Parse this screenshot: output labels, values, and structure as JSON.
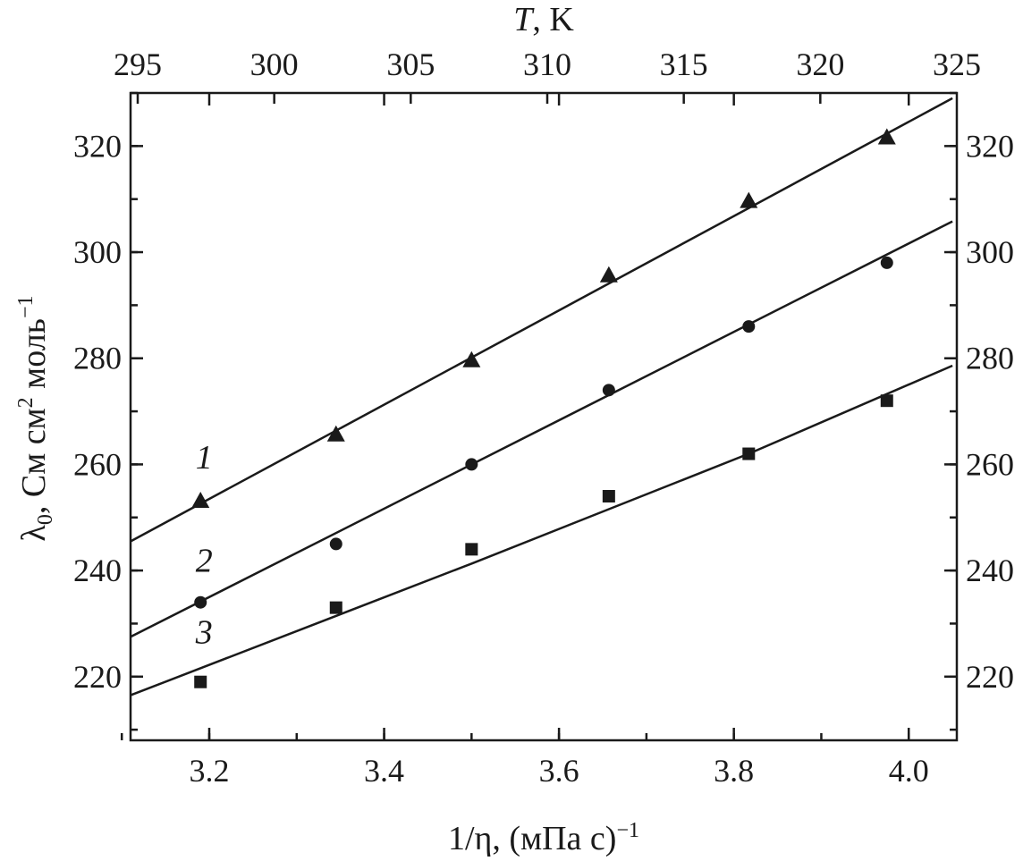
{
  "chart_data": {
    "type": "scatter",
    "bottom_axis": {
      "label": "1/η, (мПа с)",
      "label_sup": "−1",
      "range": [
        3.11,
        4.055
      ],
      "ticks": [
        3.2,
        3.4,
        3.6,
        3.8,
        4.0
      ],
      "tick_labels": [
        "3.2",
        "3.4",
        "3.6",
        "3.8",
        "4.0"
      ]
    },
    "top_axis": {
      "label_var": "T",
      "label_unit": ", K",
      "ticks": [
        295,
        300,
        305,
        310,
        315,
        320,
        325
      ],
      "tick_labels": [
        "295",
        "300",
        "305",
        "310",
        "315",
        "320",
        "325"
      ]
    },
    "left_axis": {
      "label_lambda": "λ",
      "label_sub": "0",
      "label_mid": ", См см",
      "label_sup2": "2",
      "label_mol": " моль",
      "label_sup": "−1",
      "range": [
        208,
        330
      ],
      "ticks": [
        220,
        240,
        260,
        280,
        300,
        320
      ],
      "tick_labels": [
        "220",
        "240",
        "260",
        "280",
        "300",
        "320"
      ]
    },
    "right_axis": {
      "ticks": [
        220,
        240,
        260,
        280,
        300,
        320
      ],
      "tick_labels": [
        "220",
        "240",
        "260",
        "280",
        "300",
        "320"
      ]
    },
    "grid": false,
    "series": [
      {
        "label": "1",
        "marker": "triangle",
        "x": [
          3.19,
          3.345,
          3.5,
          3.657,
          3.817,
          3.975
        ],
        "y": [
          253,
          265.5,
          279.5,
          295.5,
          309.5,
          321.5
        ],
        "fit_x": [
          3.11,
          4.05
        ],
        "fit_y": [
          245.5,
          329.0
        ]
      },
      {
        "label": "2",
        "marker": "circle",
        "x": [
          3.19,
          3.345,
          3.5,
          3.657,
          3.817,
          3.975
        ],
        "y": [
          234,
          245,
          260,
          274,
          286,
          298
        ],
        "fit_x": [
          3.11,
          4.05
        ],
        "fit_y": [
          227.5,
          305.8
        ]
      },
      {
        "label": "3",
        "marker": "square",
        "x": [
          3.19,
          3.345,
          3.5,
          3.657,
          3.817,
          3.975
        ],
        "y": [
          219,
          233,
          244,
          254,
          262,
          272
        ],
        "fit_x": [
          3.11,
          3.5,
          3.817,
          4.05
        ],
        "fit_y": [
          216.5,
          241.3,
          262.0,
          278.6
        ]
      }
    ]
  }
}
